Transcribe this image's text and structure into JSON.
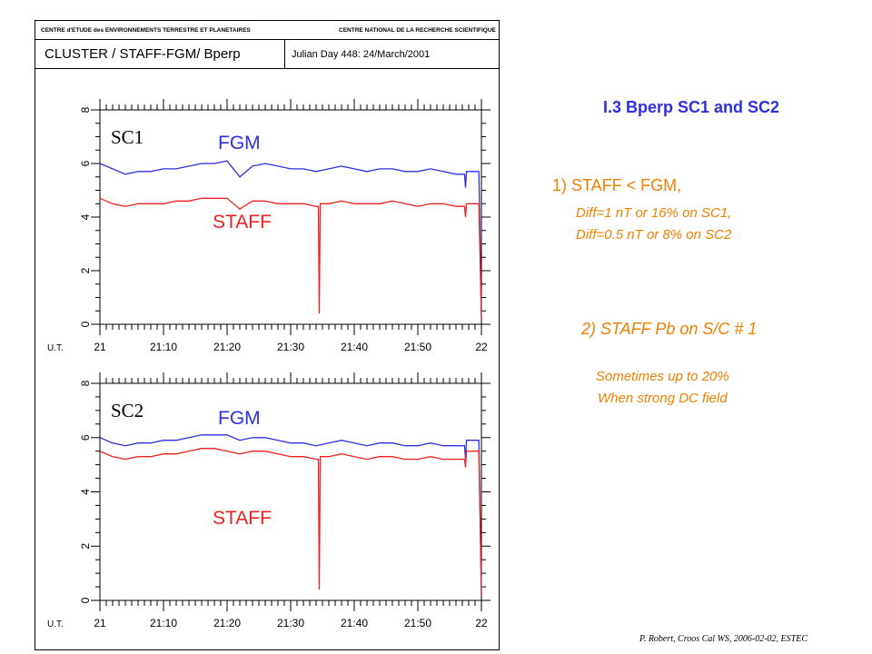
{
  "header": {
    "left_org": "CENTRE d'ETUDE des ENVIRONNEMENTS TERRESTRE ET PLANETAIRES",
    "right_org": "CENTRE NATIONAL DE LA RECHERCHE SCIENTIFIQUE",
    "plot_title": "CLUSTER / STAFF-FGM/ Bperp",
    "date_label": "Julian Day  448: 24/March/2001"
  },
  "right_panel": {
    "title": "I.3 Bperp  SC1 and SC2",
    "point1": "1) STAFF < FGM,",
    "point1_line1": "Diff=1 nT or 16% on SC1,",
    "point1_line2": "Diff=0.5 nT or 8% on SC2",
    "point2": "2) STAFF Pb on S/C # 1",
    "point2_line1": "Sometimes up to 20%",
    "point2_line2": "When strong DC field"
  },
  "credit": "P. Robert, Croos Cal WS, 2006-02-02, ESTEC",
  "colors": {
    "fgm": "#2f2fe0",
    "staff": "#f02020",
    "accent": "#f08000"
  },
  "chart_data": [
    {
      "type": "line",
      "panel_label": "SC1",
      "xlabel": "U.T.",
      "x_ticks": [
        "21",
        "21:10",
        "21:20",
        "21:30",
        "21:40",
        "21:50",
        "22"
      ],
      "xlim": [
        0,
        60
      ],
      "ylim": [
        0,
        8
      ],
      "y_ticks": [
        "0",
        "2",
        "4",
        "6",
        "8"
      ],
      "x_minutes": [
        0,
        2,
        4,
        6,
        8,
        10,
        12,
        14,
        16,
        18,
        20,
        22,
        24,
        26,
        28,
        30,
        32,
        34,
        36,
        38,
        40,
        42,
        44,
        46,
        48,
        50,
        52,
        54,
        56,
        58,
        60
      ],
      "series": [
        {
          "name": "FGM",
          "values": [
            6.0,
            5.8,
            5.6,
            5.7,
            5.7,
            5.8,
            5.8,
            5.9,
            6.0,
            6.0,
            6.1,
            5.5,
            5.9,
            6.0,
            5.9,
            5.8,
            5.8,
            5.7,
            5.8,
            5.9,
            5.8,
            5.7,
            5.8,
            5.8,
            5.7,
            5.7,
            5.8,
            5.7,
            5.6,
            5.7,
            0.2
          ]
        },
        {
          "name": "STAFF",
          "values": [
            4.7,
            4.5,
            4.4,
            4.5,
            4.5,
            4.5,
            4.6,
            4.6,
            4.7,
            4.7,
            4.7,
            4.3,
            4.6,
            4.6,
            4.5,
            4.5,
            4.5,
            4.4,
            4.5,
            4.6,
            4.5,
            4.5,
            4.5,
            4.6,
            4.5,
            4.4,
            4.5,
            4.5,
            4.4,
            4.5,
            0.2
          ]
        }
      ],
      "spikes": [
        {
          "series": "STAFF",
          "x": 34.5,
          "value": 0.4
        },
        {
          "series": "FGM",
          "x": 57.5,
          "value": 5.1
        },
        {
          "series": "STAFF",
          "x": 57.5,
          "value": 4.0
        }
      ]
    },
    {
      "type": "line",
      "panel_label": "SC2",
      "xlabel": "U.T.",
      "x_ticks": [
        "21",
        "21:10",
        "21:20",
        "21:30",
        "21:40",
        "21:50",
        "22"
      ],
      "xlim": [
        0,
        60
      ],
      "ylim": [
        0,
        8
      ],
      "y_ticks": [
        "0",
        "2",
        "4",
        "6",
        "8"
      ],
      "x_minutes": [
        0,
        2,
        4,
        6,
        8,
        10,
        12,
        14,
        16,
        18,
        20,
        22,
        24,
        26,
        28,
        30,
        32,
        34,
        36,
        38,
        40,
        42,
        44,
        46,
        48,
        50,
        52,
        54,
        56,
        58,
        60
      ],
      "series": [
        {
          "name": "FGM",
          "values": [
            6.0,
            5.8,
            5.7,
            5.8,
            5.8,
            5.9,
            5.9,
            6.0,
            6.1,
            6.1,
            6.1,
            5.9,
            6.0,
            6.0,
            5.9,
            5.8,
            5.8,
            5.7,
            5.8,
            5.9,
            5.8,
            5.7,
            5.8,
            5.8,
            5.7,
            5.7,
            5.8,
            5.7,
            5.7,
            5.9,
            0.2
          ]
        },
        {
          "name": "STAFF",
          "values": [
            5.5,
            5.3,
            5.2,
            5.3,
            5.3,
            5.4,
            5.4,
            5.5,
            5.6,
            5.6,
            5.5,
            5.4,
            5.5,
            5.5,
            5.4,
            5.3,
            5.3,
            5.2,
            5.3,
            5.4,
            5.3,
            5.2,
            5.3,
            5.3,
            5.2,
            5.2,
            5.3,
            5.2,
            5.2,
            5.5,
            0.2
          ]
        }
      ],
      "spikes": [
        {
          "series": "STAFF",
          "x": 34.5,
          "value": 0.4
        },
        {
          "series": "FGM",
          "x": 57.5,
          "value": 5.2
        },
        {
          "series": "STAFF",
          "x": 57.5,
          "value": 4.9
        }
      ]
    }
  ]
}
